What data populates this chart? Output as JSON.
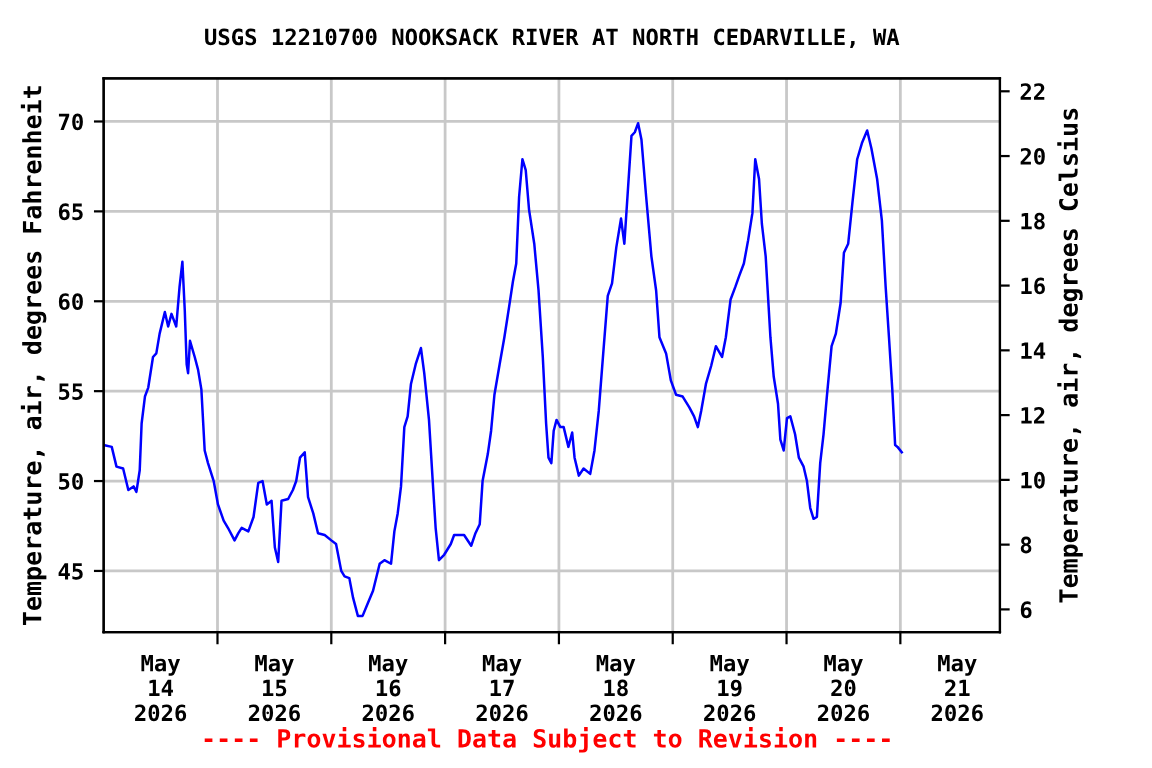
{
  "chart_data": {
    "type": "line",
    "title": "USGS 12210700 NOOKSACK RIVER AT NORTH CEDARVILLE, WA",
    "ylabel": "Temperature, air, degrees Fahrenheit",
    "y2label": "Temperature, air, degrees Celsius",
    "annotations": [
      "---- Provisional Data Subject to Revision ----"
    ],
    "x": [
      "2026-05-14T00:00",
      "2026-05-14T01:42",
      "2026-05-14T02:42",
      "2026-05-14T04:06",
      "2026-05-14T05:12",
      "2026-05-14T06:18",
      "2026-05-14T06:54",
      "2026-05-14T07:36",
      "2026-05-14T08:00",
      "2026-05-14T08:42",
      "2026-05-14T09:24",
      "2026-05-14T10:24",
      "2026-05-14T11:06",
      "2026-05-14T11:48",
      "2026-05-14T12:54",
      "2026-05-14T13:36",
      "2026-05-14T14:18",
      "2026-05-14T15:18",
      "2026-05-14T16:00",
      "2026-05-14T16:36",
      "2026-05-14T17:06",
      "2026-05-14T17:30",
      "2026-05-14T17:48",
      "2026-05-14T18:12",
      "2026-05-14T19:12",
      "2026-05-14T19:54",
      "2026-05-14T20:36",
      "2026-05-14T21:18",
      "2026-05-14T22:00",
      "2026-05-14T23:12",
      "2026-05-15T00:06",
      "2026-05-15T01:18",
      "2026-05-15T02:12",
      "2026-05-15T03:36",
      "2026-05-15T04:24",
      "2026-05-15T05:06",
      "2026-05-15T06:30",
      "2026-05-15T07:36",
      "2026-05-15T08:36",
      "2026-05-15T09:30",
      "2026-05-15T10:24",
      "2026-05-15T11:24",
      "2026-05-15T12:06",
      "2026-05-15T12:48",
      "2026-05-15T13:30",
      "2026-05-15T14:54",
      "2026-05-15T15:54",
      "2026-05-15T16:36",
      "2026-05-15T17:24",
      "2026-05-15T18:24",
      "2026-05-15T19:06",
      "2026-05-15T20:12",
      "2026-05-15T21:12",
      "2026-05-15T22:36",
      "2026-05-16T00:00",
      "2026-05-16T01:00",
      "2026-05-16T02:06",
      "2026-05-16T02:48",
      "2026-05-16T03:48",
      "2026-05-16T04:36",
      "2026-05-16T05:36",
      "2026-05-16T06:36",
      "2026-05-16T07:42",
      "2026-05-16T08:48",
      "2026-05-16T10:12",
      "2026-05-16T11:12",
      "2026-05-16T12:36",
      "2026-05-16T13:18",
      "2026-05-16T14:00",
      "2026-05-16T14:42",
      "2026-05-16T15:24",
      "2026-05-16T16:06",
      "2026-05-16T16:48",
      "2026-05-16T17:48",
      "2026-05-16T18:54",
      "2026-05-16T19:36",
      "2026-05-16T20:36",
      "2026-05-16T21:30",
      "2026-05-16T22:00",
      "2026-05-16T22:42",
      "2026-05-16T23:48",
      "2026-05-17T01:12",
      "2026-05-17T01:54",
      "2026-05-17T04:00",
      "2026-05-17T05:30",
      "2026-05-17T06:24",
      "2026-05-17T07:18",
      "2026-05-17T07:54",
      "2026-05-17T09:00",
      "2026-05-17T09:42",
      "2026-05-17T10:24",
      "2026-05-17T11:30",
      "2026-05-17T12:30",
      "2026-05-17T13:30",
      "2026-05-17T14:18",
      "2026-05-17T15:00",
      "2026-05-17T15:36",
      "2026-05-17T16:18",
      "2026-05-17T17:00",
      "2026-05-17T17:42",
      "2026-05-17T18:48",
      "2026-05-17T19:42",
      "2026-05-17T20:36",
      "2026-05-17T21:18",
      "2026-05-17T21:48",
      "2026-05-17T22:24",
      "2026-05-17T22:54",
      "2026-05-17T23:30",
      "2026-05-18T00:18",
      "2026-05-18T01:00",
      "2026-05-18T02:00",
      "2026-05-18T02:48",
      "2026-05-18T03:18",
      "2026-05-18T04:12",
      "2026-05-18T05:12",
      "2026-05-18T06:36",
      "2026-05-18T07:30",
      "2026-05-18T08:24",
      "2026-05-18T09:24",
      "2026-05-18T10:18",
      "2026-05-18T11:12",
      "2026-05-18T12:06",
      "2026-05-18T13:06",
      "2026-05-18T13:48",
      "2026-05-18T14:30",
      "2026-05-18T15:18",
      "2026-05-18T16:00",
      "2026-05-18T16:42",
      "2026-05-18T17:24",
      "2026-05-18T18:24",
      "2026-05-18T19:30",
      "2026-05-18T20:30",
      "2026-05-18T21:12",
      "2026-05-18T22:36",
      "2026-05-18T23:36",
      "2026-05-19T00:42",
      "2026-05-19T02:06",
      "2026-05-19T03:30",
      "2026-05-19T04:30",
      "2026-05-19T05:18",
      "2026-05-19T06:00",
      "2026-05-19T07:00",
      "2026-05-19T08:06",
      "2026-05-19T09:06",
      "2026-05-19T10:24",
      "2026-05-19T11:12",
      "2026-05-19T12:12",
      "2026-05-19T13:12",
      "2026-05-19T14:00",
      "2026-05-19T15:00",
      "2026-05-19T15:54",
      "2026-05-19T16:48",
      "2026-05-19T17:24",
      "2026-05-19T18:12",
      "2026-05-19T18:48",
      "2026-05-19T19:36",
      "2026-05-19T20:36",
      "2026-05-19T21:18",
      "2026-05-19T22:12",
      "2026-05-19T22:42",
      "2026-05-19T23:24",
      "2026-05-20T00:06",
      "2026-05-20T00:48",
      "2026-05-20T01:48",
      "2026-05-20T02:36",
      "2026-05-20T03:36",
      "2026-05-20T04:18",
      "2026-05-20T05:00",
      "2026-05-20T05:42",
      "2026-05-20T06:24",
      "2026-05-20T07:06",
      "2026-05-20T07:48",
      "2026-05-20T08:30",
      "2026-05-20T09:30",
      "2026-05-20T10:24",
      "2026-05-20T11:24",
      "2026-05-20T12:06",
      "2026-05-20T13:00",
      "2026-05-20T13:54",
      "2026-05-20T14:54",
      "2026-05-20T15:54",
      "2026-05-20T17:00",
      "2026-05-20T17:54",
      "2026-05-20T19:06",
      "2026-05-20T20:06",
      "2026-05-20T20:54",
      "2026-05-20T21:36",
      "2026-05-20T22:18",
      "2026-05-20T22:54",
      "2026-05-20T23:24",
      "2026-05-21T00:18"
    ],
    "series": [
      {
        "color": "#0000ff",
        "values": [
          52.0,
          51.9,
          50.8,
          50.7,
          49.5,
          49.7,
          49.4,
          50.6,
          53.2,
          54.7,
          55.2,
          56.9,
          57.1,
          58.2,
          59.4,
          58.6,
          59.3,
          58.6,
          60.8,
          62.2,
          59.5,
          56.5,
          56.0,
          57.8,
          56.9,
          56.2,
          55.1,
          51.7,
          51.0,
          50.0,
          48.7,
          47.8,
          47.4,
          46.7,
          47.1,
          47.4,
          47.2,
          48.0,
          49.9,
          50.0,
          48.7,
          48.9,
          46.3,
          45.5,
          48.9,
          49.0,
          49.5,
          50.0,
          51.3,
          51.6,
          49.1,
          48.2,
          47.1,
          47.0,
          46.7,
          46.5,
          45.0,
          44.7,
          44.6,
          43.5,
          42.5,
          42.5,
          43.2,
          43.9,
          45.4,
          45.6,
          45.4,
          47.2,
          48.2,
          49.7,
          53.0,
          53.6,
          55.4,
          56.5,
          57.4,
          56.0,
          53.4,
          49.5,
          47.4,
          45.6,
          45.9,
          46.5,
          47.0,
          47.0,
          46.4,
          47.1,
          47.6,
          50.0,
          51.5,
          52.8,
          54.8,
          56.5,
          58.0,
          59.7,
          61.1,
          62.1,
          65.8,
          67.9,
          67.3,
          65.1,
          63.2,
          60.6,
          56.9,
          53.2,
          51.3,
          51.0,
          52.8,
          53.4,
          53.0,
          53.0,
          51.9,
          52.7,
          51.3,
          50.3,
          50.7,
          50.4,
          51.7,
          53.9,
          57.3,
          60.3,
          61.0,
          63.0,
          64.6,
          63.2,
          66.0,
          69.2,
          69.4,
          69.9,
          69.0,
          65.8,
          62.5,
          60.6,
          58.0,
          57.1,
          55.6,
          54.8,
          54.7,
          54.1,
          53.6,
          53.0,
          53.9,
          55.4,
          56.4,
          57.5,
          56.9,
          58.0,
          60.1,
          60.8,
          61.4,
          62.1,
          63.4,
          64.9,
          67.9,
          66.8,
          64.3,
          62.5,
          58.0,
          55.8,
          54.3,
          52.3,
          51.7,
          53.5,
          53.6,
          52.6,
          51.3,
          50.8,
          50.0,
          48.5,
          47.9,
          48.0,
          51.0,
          52.6,
          54.7,
          57.5,
          58.2,
          59.9,
          62.7,
          63.2,
          65.5,
          67.9,
          68.8,
          69.5,
          68.5,
          66.8,
          64.5,
          60.8,
          58.0,
          55.1,
          52.0,
          51.9,
          51.6
        ]
      }
    ],
    "xlim": [
      "2026-05-14T00:00",
      "2026-05-21T21:00"
    ],
    "xticks": [
      {
        "value": "2026-05-14T12:00",
        "label": "May\n14\n2026"
      },
      {
        "value": "2026-05-15T00:00",
        "label": null
      },
      {
        "value": "2026-05-15T12:00",
        "label": "May\n15\n2026"
      },
      {
        "value": "2026-05-16T00:00",
        "label": null
      },
      {
        "value": "2026-05-16T12:00",
        "label": "May\n16\n2026"
      },
      {
        "value": "2026-05-17T00:00",
        "label": null
      },
      {
        "value": "2026-05-17T12:00",
        "label": "May\n17\n2026"
      },
      {
        "value": "2026-05-18T00:00",
        "label": null
      },
      {
        "value": "2026-05-18T12:00",
        "label": "May\n18\n2026"
      },
      {
        "value": "2026-05-19T00:00",
        "label": null
      },
      {
        "value": "2026-05-19T12:00",
        "label": "May\n19\n2026"
      },
      {
        "value": "2026-05-20T00:00",
        "label": null
      },
      {
        "value": "2026-05-20T12:00",
        "label": "May\n20\n2026"
      },
      {
        "value": "2026-05-21T00:00",
        "label": null
      },
      {
        "value": "2026-05-21T12:00",
        "label": "May\n21\n2026"
      }
    ],
    "ylim": [
      41.6,
      72.4
    ],
    "yticks": [
      45,
      50,
      55,
      60,
      65,
      70
    ],
    "y2lim": [
      5.3,
      22.4
    ],
    "y2ticks": [
      6,
      8,
      10,
      12,
      14,
      16,
      18,
      20,
      22
    ],
    "grid": true,
    "line_style": "solid"
  }
}
